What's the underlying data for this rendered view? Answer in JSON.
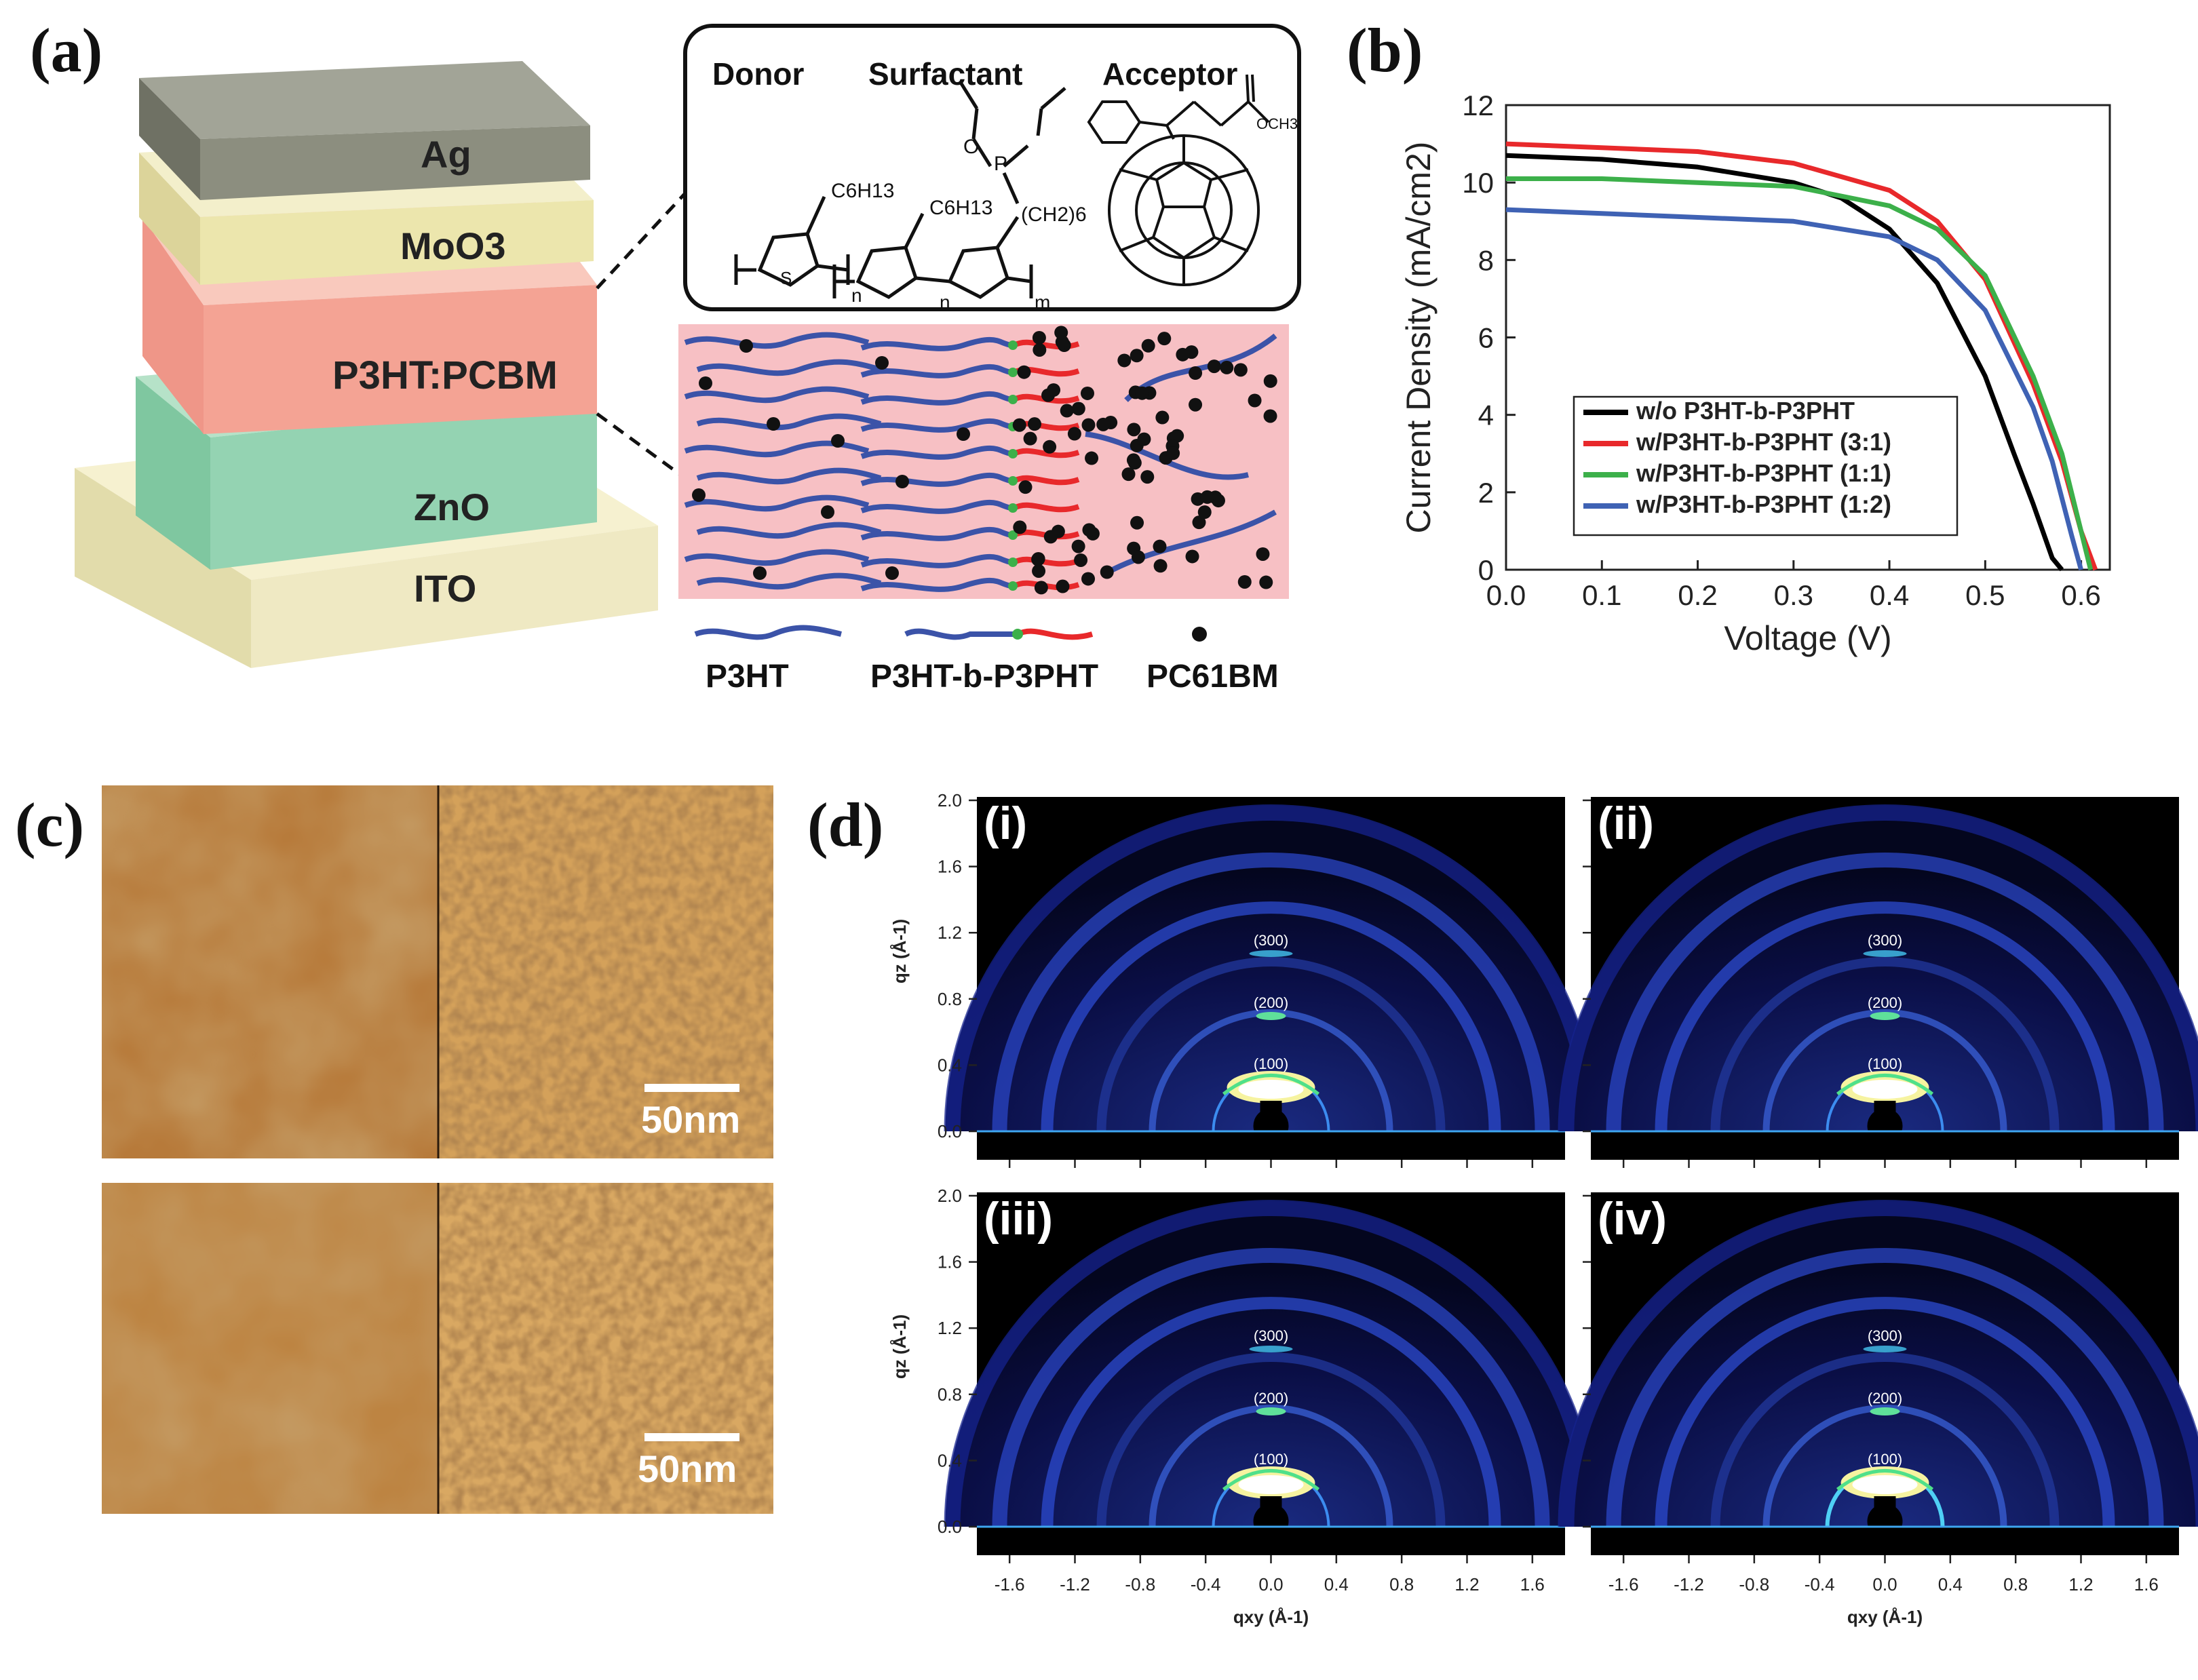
{
  "panels": {
    "a": {
      "label": "(a)",
      "layers": [
        "Ag",
        "MoO3",
        "P3HT:PCBM",
        "ZnO",
        "ITO"
      ],
      "layer_colors": [
        "#8c8e7f",
        "#ece6ad",
        "#f4a394",
        "#93d3b0",
        "#ece6bc"
      ],
      "molecules_box": {
        "headers": [
          "Donor",
          "Surfactant",
          "Acceptor"
        ],
        "donor_substituent": "C6H13",
        "surfactant_substituents": [
          "C6H13",
          "(CH2)6"
        ],
        "acceptor_substituent": "OCH3",
        "repeat_indices": [
          "n",
          "n",
          "m"
        ],
        "heteroatoms": [
          "S",
          "P",
          "O"
        ]
      },
      "morphology_colors": {
        "background": "#f7c0c4",
        "p3ht": "#3b53a8",
        "p3pht": "#e8292b",
        "junction": "#3cb04a",
        "pcbm": "#111111"
      },
      "legend": [
        {
          "label": "P3HT"
        },
        {
          "label": "P3HT-b-P3PHT"
        },
        {
          "label": "PC61BM"
        }
      ]
    },
    "b": {
      "label": "(b)"
    },
    "c": {
      "label": "(c)",
      "scale_bar_text": [
        "50nm",
        "50nm"
      ]
    },
    "d": {
      "label": "(d)",
      "subpanels": [
        "(i)",
        "(ii)",
        "(iii)",
        "(iv)"
      ],
      "peak_labels": [
        "(300)",
        "(200)",
        "(100)"
      ],
      "y_axis_label": "qz (Å-1)",
      "x_axis_label": "qxy (Å-1)",
      "y_ticks": [
        "0.0",
        "0.4",
        "0.8",
        "1.2",
        "1.6",
        "2.0"
      ],
      "x_ticks": [
        "-1.6",
        "-1.2",
        "-0.8",
        "-0.4",
        "0.0",
        "0.4",
        "0.8",
        "1.2",
        "1.6"
      ]
    }
  },
  "chart_data": {
    "type": "line",
    "xlabel": "Voltage (V)",
    "ylabel": "Current Density (mA/cm2)",
    "xlim": [
      0.0,
      0.63
    ],
    "ylim": [
      0,
      12
    ],
    "x_ticks": [
      "0.0",
      "0.1",
      "0.2",
      "0.3",
      "0.4",
      "0.5",
      "0.6"
    ],
    "y_ticks": [
      "0",
      "2",
      "4",
      "6",
      "8",
      "10",
      "12"
    ],
    "legend_position": "lower-left",
    "series": [
      {
        "name": "w/o P3HT-b-P3PHT",
        "color": "#000000",
        "x": [
          0.0,
          0.1,
          0.2,
          0.3,
          0.35,
          0.4,
          0.45,
          0.5,
          0.53,
          0.55,
          0.57,
          0.58
        ],
        "y": [
          10.7,
          10.6,
          10.4,
          10.0,
          9.6,
          8.8,
          7.4,
          5.0,
          3.0,
          1.7,
          0.3,
          0.0
        ]
      },
      {
        "name": "w/P3HT-b-P3PHT (3:1)",
        "color": "#e8292b",
        "x": [
          0.0,
          0.1,
          0.2,
          0.3,
          0.4,
          0.45,
          0.5,
          0.55,
          0.58,
          0.6,
          0.615
        ],
        "y": [
          11.0,
          10.9,
          10.8,
          10.5,
          9.8,
          9.0,
          7.5,
          4.8,
          2.8,
          1.0,
          0.0
        ]
      },
      {
        "name": "w/P3HT-b-P3PHT (1:1)",
        "color": "#3cb04a",
        "x": [
          0.0,
          0.1,
          0.2,
          0.3,
          0.4,
          0.45,
          0.5,
          0.55,
          0.58,
          0.6,
          0.61
        ],
        "y": [
          10.1,
          10.1,
          10.0,
          9.9,
          9.4,
          8.8,
          7.6,
          5.0,
          3.0,
          1.0,
          0.0
        ]
      },
      {
        "name": "w/P3HT-b-P3PHT (1:2)",
        "color": "#3f62b4",
        "x": [
          0.0,
          0.1,
          0.2,
          0.3,
          0.4,
          0.45,
          0.5,
          0.55,
          0.57,
          0.59,
          0.6
        ],
        "y": [
          9.3,
          9.2,
          9.1,
          9.0,
          8.6,
          8.0,
          6.7,
          4.2,
          2.8,
          0.9,
          0.0
        ]
      }
    ]
  }
}
